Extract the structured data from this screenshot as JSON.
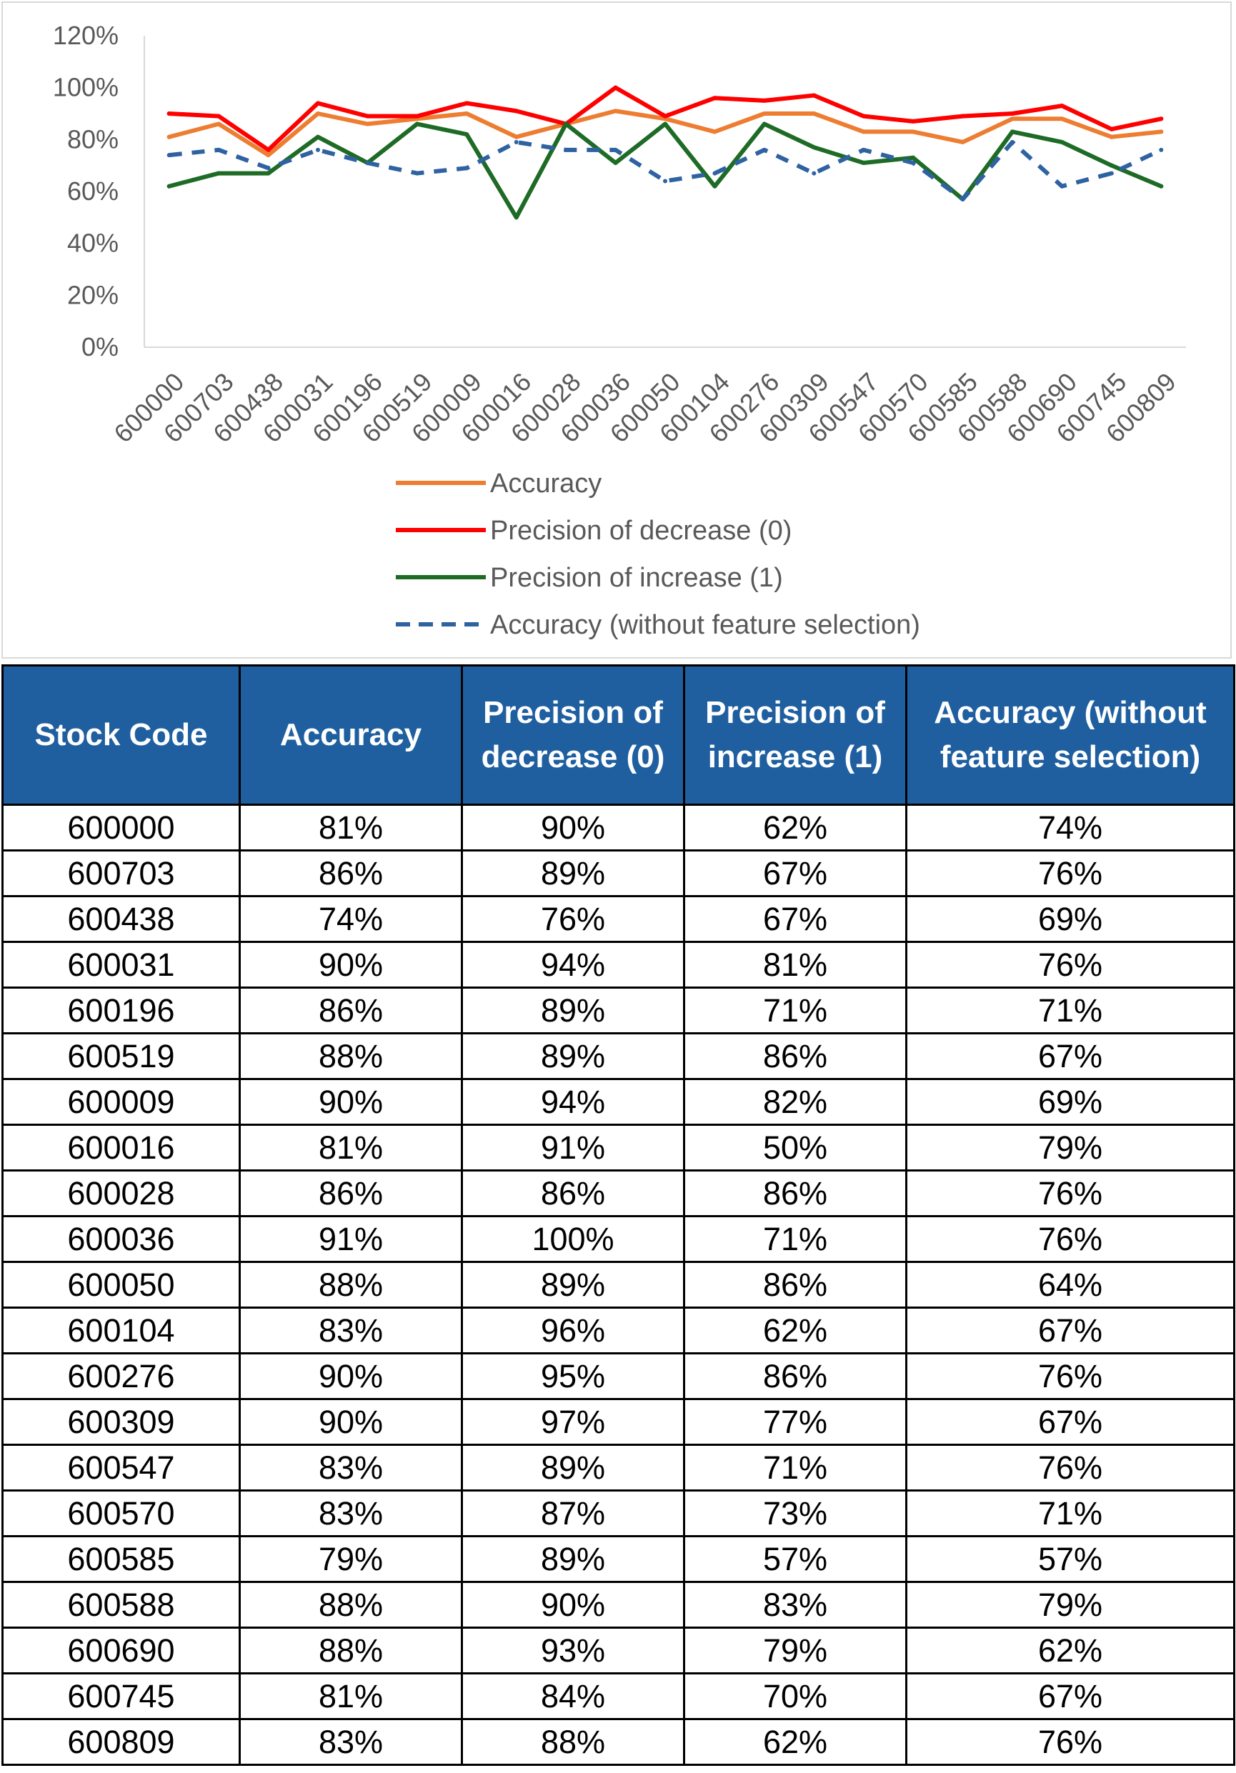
{
  "chart_data": {
    "type": "line",
    "categories": [
      "600000",
      "600703",
      "600438",
      "600031",
      "600196",
      "600519",
      "600009",
      "600016",
      "600028",
      "600036",
      "600050",
      "600104",
      "600276",
      "600309",
      "600547",
      "600570",
      "600585",
      "600588",
      "600690",
      "600745",
      "600809"
    ],
    "series": [
      {
        "name": "Accuracy",
        "color": "#ed7d31",
        "style": "solid",
        "values": [
          0.81,
          0.86,
          0.74,
          0.9,
          0.86,
          0.88,
          0.9,
          0.81,
          0.86,
          0.91,
          0.88,
          0.83,
          0.9,
          0.9,
          0.83,
          0.83,
          0.79,
          0.88,
          0.88,
          0.81,
          0.83
        ]
      },
      {
        "name": "Precision of decrease (0)",
        "color": "#ff0000",
        "style": "solid",
        "values": [
          0.9,
          0.89,
          0.76,
          0.94,
          0.89,
          0.89,
          0.94,
          0.91,
          0.86,
          1.0,
          0.89,
          0.96,
          0.95,
          0.97,
          0.89,
          0.87,
          0.89,
          0.9,
          0.93,
          0.84,
          0.88
        ]
      },
      {
        "name": "Precision of increase (1)",
        "color": "#1e6b26",
        "style": "solid",
        "values": [
          0.62,
          0.67,
          0.67,
          0.81,
          0.71,
          0.86,
          0.82,
          0.5,
          0.86,
          0.71,
          0.86,
          0.62,
          0.86,
          0.77,
          0.71,
          0.73,
          0.57,
          0.83,
          0.79,
          0.7,
          0.62
        ]
      },
      {
        "name": "Accuracy (without feature selection)",
        "color": "#2e62a1",
        "style": "dashed",
        "values": [
          0.74,
          0.76,
          0.69,
          0.76,
          0.71,
          0.67,
          0.69,
          0.79,
          0.76,
          0.76,
          0.64,
          0.67,
          0.76,
          0.67,
          0.76,
          0.71,
          0.57,
          0.79,
          0.62,
          0.67,
          0.76
        ]
      }
    ],
    "yticks": [
      "0%",
      "20%",
      "40%",
      "60%",
      "80%",
      "100%",
      "120%"
    ],
    "ylim": [
      0,
      1.2
    ],
    "legend_position": "bottom",
    "grid": false
  },
  "table": {
    "headers": [
      "Stock Code",
      "Accuracy",
      "Precision of decrease (0)",
      "Precision of increase (1)",
      "Accuracy (without feature selection)"
    ],
    "rows": [
      [
        "600000",
        "81%",
        "90%",
        "62%",
        "74%"
      ],
      [
        "600703",
        "86%",
        "89%",
        "67%",
        "76%"
      ],
      [
        "600438",
        "74%",
        "76%",
        "67%",
        "69%"
      ],
      [
        "600031",
        "90%",
        "94%",
        "81%",
        "76%"
      ],
      [
        "600196",
        "86%",
        "89%",
        "71%",
        "71%"
      ],
      [
        "600519",
        "88%",
        "89%",
        "86%",
        "67%"
      ],
      [
        "600009",
        "90%",
        "94%",
        "82%",
        "69%"
      ],
      [
        "600016",
        "81%",
        "91%",
        "50%",
        "79%"
      ],
      [
        "600028",
        "86%",
        "86%",
        "86%",
        "76%"
      ],
      [
        "600036",
        "91%",
        "100%",
        "71%",
        "76%"
      ],
      [
        "600050",
        "88%",
        "89%",
        "86%",
        "64%"
      ],
      [
        "600104",
        "83%",
        "96%",
        "62%",
        "67%"
      ],
      [
        "600276",
        "90%",
        "95%",
        "86%",
        "76%"
      ],
      [
        "600309",
        "90%",
        "97%",
        "77%",
        "67%"
      ],
      [
        "600547",
        "83%",
        "89%",
        "71%",
        "76%"
      ],
      [
        "600570",
        "83%",
        "87%",
        "73%",
        "71%"
      ],
      [
        "600585",
        "79%",
        "89%",
        "57%",
        "57%"
      ],
      [
        "600588",
        "88%",
        "90%",
        "83%",
        "79%"
      ],
      [
        "600690",
        "88%",
        "93%",
        "79%",
        "62%"
      ],
      [
        "600745",
        "81%",
        "84%",
        "70%",
        "67%"
      ],
      [
        "600809",
        "83%",
        "88%",
        "62%",
        "76%"
      ]
    ]
  }
}
